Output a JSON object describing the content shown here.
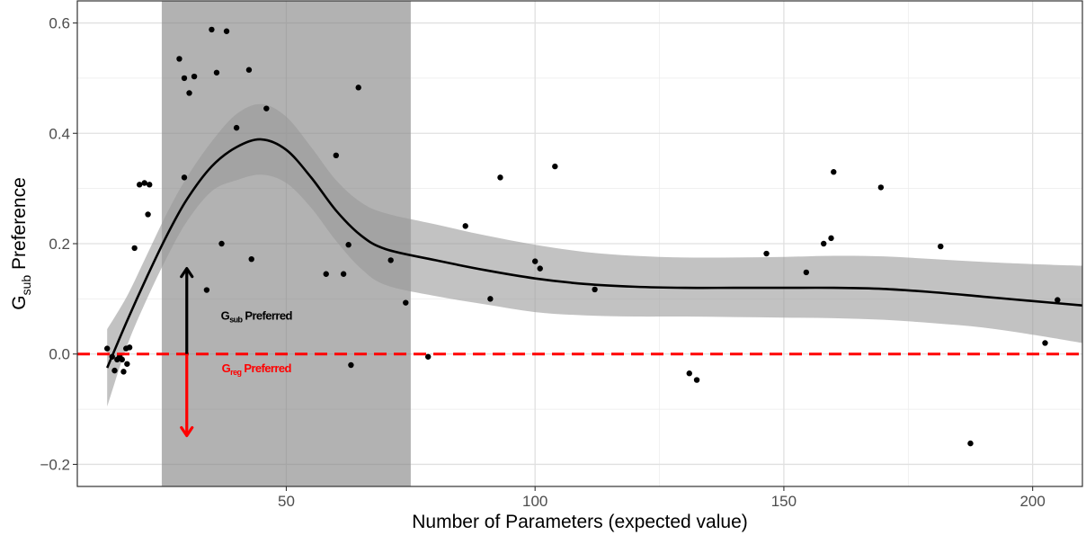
{
  "chart_data": {
    "type": "scatter",
    "xlabel": "Number of Parameters (expected value)",
    "ylabel": {
      "main": "G",
      "sub": "sub",
      "rest": " Preference"
    },
    "xlim": [
      8,
      210
    ],
    "ylim": [
      -0.24,
      0.64
    ],
    "x_ticks": [
      {
        "value": 50,
        "label": "50"
      },
      {
        "value": 100,
        "label": "100"
      },
      {
        "value": 150,
        "label": "150"
      },
      {
        "value": 200,
        "label": "200"
      }
    ],
    "y_ticks": [
      {
        "value": -0.2,
        "label": "−0.2"
      },
      {
        "value": 0.0,
        "label": "0.0"
      },
      {
        "value": 0.2,
        "label": "0.2"
      },
      {
        "value": 0.4,
        "label": "0.4"
      },
      {
        "value": 0.6,
        "label": "0.6"
      }
    ],
    "grid": true,
    "shaded_region": {
      "x_start": 25,
      "x_end": 75
    },
    "reference_line": {
      "y": 0,
      "color": "#ff0000",
      "style": "dashed"
    },
    "smooth_curve": [
      {
        "x": 14,
        "y": -0.025,
        "ymin": -0.095,
        "ymax": 0.045
      },
      {
        "x": 18,
        "y": 0.06,
        "ymin": 0.015,
        "ymax": 0.105
      },
      {
        "x": 22,
        "y": 0.14,
        "ymin": 0.1,
        "ymax": 0.18
      },
      {
        "x": 26,
        "y": 0.215,
        "ymin": 0.175,
        "ymax": 0.255
      },
      {
        "x": 30,
        "y": 0.28,
        "ymin": 0.24,
        "ymax": 0.32
      },
      {
        "x": 35,
        "y": 0.34,
        "ymin": 0.295,
        "ymax": 0.385
      },
      {
        "x": 40,
        "y": 0.375,
        "ymin": 0.315,
        "ymax": 0.435
      },
      {
        "x": 45,
        "y": 0.389,
        "ymin": 0.325,
        "ymax": 0.453
      },
      {
        "x": 50,
        "y": 0.37,
        "ymin": 0.31,
        "ymax": 0.43
      },
      {
        "x": 55,
        "y": 0.32,
        "ymin": 0.265,
        "ymax": 0.375
      },
      {
        "x": 60,
        "y": 0.26,
        "ymin": 0.205,
        "ymax": 0.315
      },
      {
        "x": 65,
        "y": 0.215,
        "ymin": 0.155,
        "ymax": 0.275
      },
      {
        "x": 70,
        "y": 0.19,
        "ymin": 0.125,
        "ymax": 0.255
      },
      {
        "x": 80,
        "y": 0.17,
        "ymin": 0.105,
        "ymax": 0.235
      },
      {
        "x": 90,
        "y": 0.152,
        "ymin": 0.09,
        "ymax": 0.215
      },
      {
        "x": 100,
        "y": 0.137,
        "ymin": 0.076,
        "ymax": 0.198
      },
      {
        "x": 110,
        "y": 0.127,
        "ymin": 0.07,
        "ymax": 0.185
      },
      {
        "x": 120,
        "y": 0.122,
        "ymin": 0.068,
        "ymax": 0.178
      },
      {
        "x": 130,
        "y": 0.12,
        "ymin": 0.068,
        "ymax": 0.175
      },
      {
        "x": 140,
        "y": 0.12,
        "ymin": 0.067,
        "ymax": 0.175
      },
      {
        "x": 150,
        "y": 0.12,
        "ymin": 0.066,
        "ymax": 0.176
      },
      {
        "x": 160,
        "y": 0.12,
        "ymin": 0.065,
        "ymax": 0.178
      },
      {
        "x": 170,
        "y": 0.118,
        "ymin": 0.062,
        "ymax": 0.177
      },
      {
        "x": 180,
        "y": 0.112,
        "ymin": 0.056,
        "ymax": 0.172
      },
      {
        "x": 190,
        "y": 0.104,
        "ymin": 0.048,
        "ymax": 0.167
      },
      {
        "x": 200,
        "y": 0.096,
        "ymin": 0.035,
        "ymax": 0.163
      },
      {
        "x": 210,
        "y": 0.088,
        "ymin": 0.02,
        "ymax": 0.16
      }
    ],
    "points": [
      {
        "x": 14,
        "y": 0.01
      },
      {
        "x": 15,
        "y": -0.005
      },
      {
        "x": 15.5,
        "y": -0.03
      },
      {
        "x": 16,
        "y": -0.01
      },
      {
        "x": 16.5,
        "y": -0.005
      },
      {
        "x": 17,
        "y": -0.01
      },
      {
        "x": 17.3,
        "y": -0.032
      },
      {
        "x": 17.8,
        "y": 0.01
      },
      {
        "x": 18,
        "y": -0.018
      },
      {
        "x": 18.5,
        "y": 0.012
      },
      {
        "x": 19.5,
        "y": 0.192
      },
      {
        "x": 20.5,
        "y": 0.307
      },
      {
        "x": 21.5,
        "y": 0.31
      },
      {
        "x": 22.5,
        "y": 0.307
      },
      {
        "x": 22.2,
        "y": 0.253
      },
      {
        "x": 28.5,
        "y": 0.535
      },
      {
        "x": 29.5,
        "y": 0.5
      },
      {
        "x": 30.5,
        "y": 0.473
      },
      {
        "x": 31.5,
        "y": 0.503
      },
      {
        "x": 29.5,
        "y": 0.32
      },
      {
        "x": 34,
        "y": 0.116
      },
      {
        "x": 35,
        "y": 0.588
      },
      {
        "x": 36,
        "y": 0.51
      },
      {
        "x": 37,
        "y": 0.2
      },
      {
        "x": 38,
        "y": 0.585
      },
      {
        "x": 40,
        "y": 0.41
      },
      {
        "x": 42.5,
        "y": 0.515
      },
      {
        "x": 43,
        "y": 0.172
      },
      {
        "x": 46,
        "y": 0.445
      },
      {
        "x": 58,
        "y": 0.145
      },
      {
        "x": 60,
        "y": 0.36
      },
      {
        "x": 61.5,
        "y": 0.145
      },
      {
        "x": 62.5,
        "y": 0.198
      },
      {
        "x": 63,
        "y": -0.02
      },
      {
        "x": 64.5,
        "y": 0.483
      },
      {
        "x": 71,
        "y": 0.17
      },
      {
        "x": 74,
        "y": 0.093
      },
      {
        "x": 78.5,
        "y": -0.005
      },
      {
        "x": 86,
        "y": 0.232
      },
      {
        "x": 91,
        "y": 0.1
      },
      {
        "x": 93,
        "y": 0.32
      },
      {
        "x": 100,
        "y": 0.168
      },
      {
        "x": 101,
        "y": 0.155
      },
      {
        "x": 104,
        "y": 0.34
      },
      {
        "x": 112,
        "y": 0.117
      },
      {
        "x": 131,
        "y": -0.035
      },
      {
        "x": 132.5,
        "y": -0.047
      },
      {
        "x": 146.5,
        "y": 0.182
      },
      {
        "x": 154.5,
        "y": 0.148
      },
      {
        "x": 158,
        "y": 0.2
      },
      {
        "x": 159.5,
        "y": 0.21
      },
      {
        "x": 160,
        "y": 0.33
      },
      {
        "x": 169.5,
        "y": 0.302
      },
      {
        "x": 181.5,
        "y": 0.195
      },
      {
        "x": 187.5,
        "y": -0.162
      },
      {
        "x": 202.5,
        "y": 0.02
      },
      {
        "x": 205,
        "y": 0.098
      }
    ],
    "arrows": [
      {
        "x": 30,
        "y_from": 0.0,
        "y_to": 0.155,
        "color": "#000000"
      },
      {
        "x": 30,
        "y_from": 0.0,
        "y_to": -0.148,
        "color": "#ff0000"
      }
    ],
    "annotations": [
      {
        "x": 44,
        "y": 0.062,
        "main": "G",
        "sub": "sub",
        "rest": " Preferred",
        "color": "#000000"
      },
      {
        "x": 44,
        "y": -0.033,
        "main": "G",
        "sub": "reg",
        "rest": " Preferred",
        "color": "#ff0000"
      }
    ]
  }
}
